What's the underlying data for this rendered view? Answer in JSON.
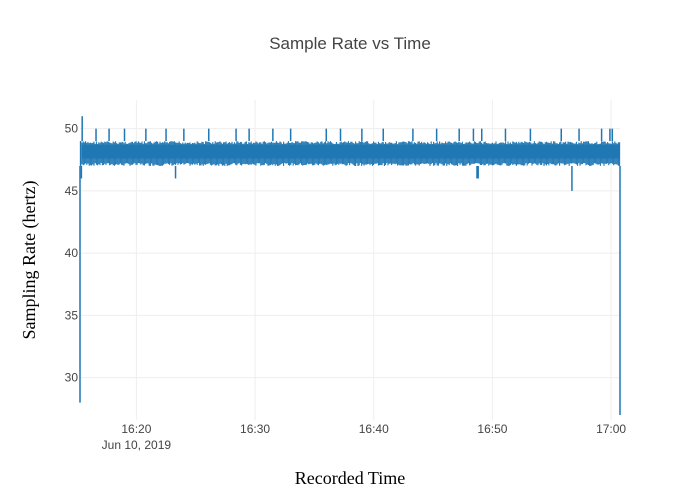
{
  "chart_data": {
    "type": "line",
    "title": "Sample Rate vs Time",
    "xlabel": "Recorded Time",
    "ylabel": "Sampling Rate (hertz)",
    "x_range": [
      "2019-06-10 16:15:15",
      "2019-06-10 17:00:45"
    ],
    "ylim": [
      26.6,
      52.3
    ],
    "x_ticks": [
      {
        "value": "2019-06-10 16:20:00",
        "label": "16:20",
        "sublabel": "Jun 10, 2019"
      },
      {
        "value": "2019-06-10 16:30:00",
        "label": "16:30",
        "sublabel": ""
      },
      {
        "value": "2019-06-10 16:40:00",
        "label": "16:40",
        "sublabel": ""
      },
      {
        "value": "2019-06-10 16:50:00",
        "label": "16:50",
        "sublabel": ""
      },
      {
        "value": "2019-06-10 17:00:00",
        "label": "17:00",
        "sublabel": ""
      }
    ],
    "y_ticks": [
      30,
      35,
      40,
      45,
      50
    ],
    "grid": true,
    "series": [
      {
        "color": "#1f77b4",
        "base_range": [
          47,
          49
        ],
        "points": [
          {
            "x": "2019-06-10 16:15:15",
            "y": 28
          },
          {
            "x": "2019-06-10 16:15:18",
            "y": 49
          },
          {
            "x": "2019-06-10 16:15:22",
            "y": 46
          },
          {
            "x": "2019-06-10 16:15:26",
            "y": 51
          },
          {
            "x": "2019-06-10 16:15:30",
            "y": 47
          },
          {
            "x": "2019-06-10 16:16:36",
            "y": 50
          },
          {
            "x": "2019-06-10 16:17:42",
            "y": 50
          },
          {
            "x": "2019-06-10 16:19:00",
            "y": 50
          },
          {
            "x": "2019-06-10 16:20:48",
            "y": 50
          },
          {
            "x": "2019-06-10 16:22:30",
            "y": 50
          },
          {
            "x": "2019-06-10 16:23:18",
            "y": 46
          },
          {
            "x": "2019-06-10 16:24:00",
            "y": 50
          },
          {
            "x": "2019-06-10 16:26:06",
            "y": 50
          },
          {
            "x": "2019-06-10 16:28:24",
            "y": 50
          },
          {
            "x": "2019-06-10 16:29:30",
            "y": 50
          },
          {
            "x": "2019-06-10 16:31:30",
            "y": 50
          },
          {
            "x": "2019-06-10 16:33:00",
            "y": 50
          },
          {
            "x": "2019-06-10 16:36:00",
            "y": 50
          },
          {
            "x": "2019-06-10 16:37:12",
            "y": 50
          },
          {
            "x": "2019-06-10 16:39:00",
            "y": 50
          },
          {
            "x": "2019-06-10 16:40:48",
            "y": 50
          },
          {
            "x": "2019-06-10 16:43:18",
            "y": 50
          },
          {
            "x": "2019-06-10 16:45:18",
            "y": 50
          },
          {
            "x": "2019-06-10 16:47:12",
            "y": 50
          },
          {
            "x": "2019-06-10 16:48:24",
            "y": 50
          },
          {
            "x": "2019-06-10 16:48:42",
            "y": 46
          },
          {
            "x": "2019-06-10 16:48:48",
            "y": 46
          },
          {
            "x": "2019-06-10 16:49:06",
            "y": 50
          },
          {
            "x": "2019-06-10 16:51:06",
            "y": 50
          },
          {
            "x": "2019-06-10 16:53:12",
            "y": 50
          },
          {
            "x": "2019-06-10 16:55:48",
            "y": 50
          },
          {
            "x": "2019-06-10 16:56:42",
            "y": 45
          },
          {
            "x": "2019-06-10 16:57:18",
            "y": 50
          },
          {
            "x": "2019-06-10 16:59:12",
            "y": 50
          },
          {
            "x": "2019-06-10 16:59:54",
            "y": 50
          },
          {
            "x": "2019-06-10 17:00:06",
            "y": 50
          },
          {
            "x": "2019-06-10 17:00:45",
            "y": 27
          }
        ]
      }
    ]
  }
}
